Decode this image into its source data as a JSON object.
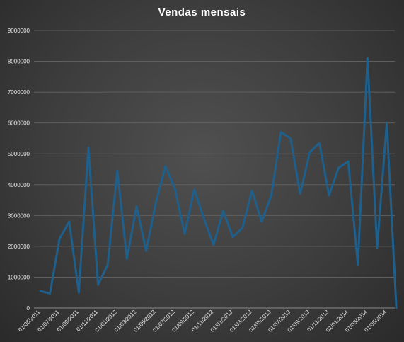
{
  "chart_data": {
    "type": "line",
    "title": "Vendas mensais",
    "xlabel": "",
    "ylabel": "",
    "ylim": [
      0,
      9000000
    ],
    "yticks": [
      "0",
      "1000000",
      "2000000",
      "3000000",
      "4000000",
      "5000000",
      "6000000",
      "7000000",
      "8000000",
      "9000000"
    ],
    "grid": true,
    "legend": "none",
    "line_color": "#1f5f8b",
    "x": [
      "01/05/2011",
      "01/06/2011",
      "01/07/2011",
      "01/08/2011",
      "01/09/2011",
      "01/10/2011",
      "01/11/2011",
      "01/12/2011",
      "01/01/2012",
      "01/02/2012",
      "01/03/2012",
      "01/04/2012",
      "01/05/2012",
      "01/06/2012",
      "01/07/2012",
      "01/08/2012",
      "01/09/2012",
      "01/10/2012",
      "01/11/2012",
      "01/12/2012",
      "01/01/2013",
      "01/02/2013",
      "01/03/2013",
      "01/04/2013",
      "01/05/2013",
      "01/06/2013",
      "01/07/2013",
      "01/08/2013",
      "01/09/2013",
      "01/10/2013",
      "01/11/2013",
      "01/12/2013",
      "01/01/2014",
      "01/02/2014",
      "01/03/2014",
      "01/04/2014",
      "01/05/2014",
      "01/06/2014"
    ],
    "xticks": [
      "01/05/2011",
      "01/07/2011",
      "01/09/2011",
      "01/11/2011",
      "01/01/2012",
      "01/03/2012",
      "01/05/2012",
      "01/07/2012",
      "01/09/2012",
      "01/11/2012",
      "01/01/2013",
      "01/03/2013",
      "01/05/2013",
      "01/07/2013",
      "01/09/2013",
      "01/11/2013",
      "01/01/2014",
      "01/03/2014",
      "01/05/2014"
    ],
    "values": [
      550000,
      470000,
      2250000,
      2800000,
      500000,
      5200000,
      750000,
      1400000,
      4450000,
      1600000,
      3300000,
      1850000,
      3400000,
      4600000,
      3850000,
      2400000,
      3850000,
      2900000,
      2050000,
      3150000,
      2300000,
      2600000,
      3800000,
      2800000,
      3650000,
      5700000,
      5500000,
      3700000,
      5050000,
      5350000,
      3650000,
      4550000,
      4750000,
      1400000,
      8100000,
      1950000,
      6000000,
      0
    ]
  }
}
